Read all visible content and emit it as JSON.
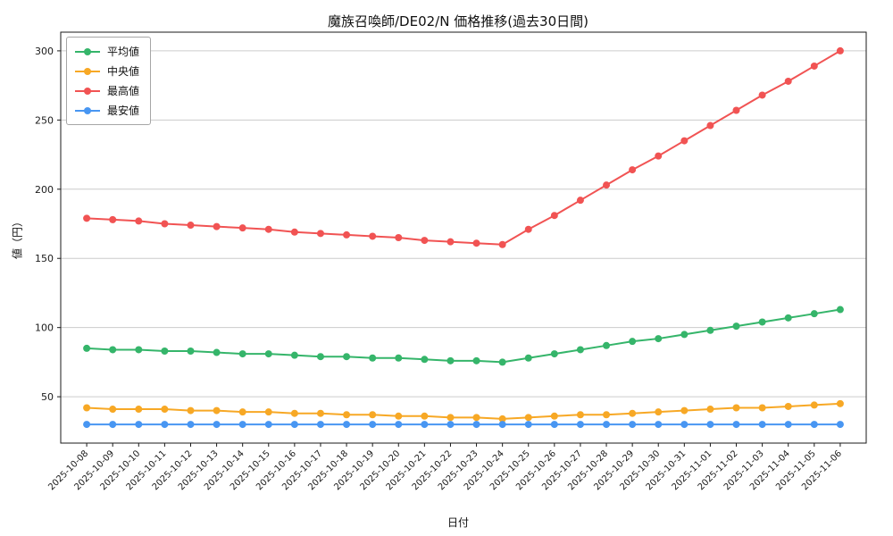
{
  "chart_data": {
    "type": "line",
    "title": "魔族召喚師/DE02/N 価格推移(過去30日間)",
    "xlabel": "日付",
    "ylabel": "値（円）",
    "ylim": [
      16.5,
      313.5
    ],
    "yticks": [
      50,
      100,
      150,
      200,
      250,
      300
    ],
    "grid": "horizontal",
    "legend_position": "upper-left",
    "axis_color": "#1a1a1a",
    "grid_color": "#cccccc",
    "categories": [
      "2025-10-08",
      "2025-10-09",
      "2025-10-10",
      "2025-10-11",
      "2025-10-12",
      "2025-10-13",
      "2025-10-14",
      "2025-10-15",
      "2025-10-16",
      "2025-10-17",
      "2025-10-18",
      "2025-10-19",
      "2025-10-20",
      "2025-10-21",
      "2025-10-22",
      "2025-10-23",
      "2025-10-24",
      "2025-10-25",
      "2025-10-26",
      "2025-10-27",
      "2025-10-28",
      "2025-10-29",
      "2025-10-30",
      "2025-10-31",
      "2025-11-01",
      "2025-11-02",
      "2025-11-03",
      "2025-11-04",
      "2025-11-05",
      "2025-11-06"
    ],
    "series": [
      {
        "name": "平均値",
        "color": "#35b56a",
        "values": [
          85,
          84,
          84,
          83,
          83,
          82,
          81,
          81,
          80,
          79,
          79,
          78,
          78,
          77,
          76,
          76,
          75,
          78,
          81,
          84,
          87,
          90,
          92,
          95,
          98,
          101,
          104,
          107,
          110,
          113
        ]
      },
      {
        "name": "中央値",
        "color": "#f7a825",
        "values": [
          42,
          41,
          41,
          41,
          40,
          40,
          39,
          39,
          38,
          38,
          37,
          37,
          36,
          36,
          35,
          35,
          34,
          35,
          36,
          37,
          37,
          38,
          39,
          40,
          41,
          42,
          42,
          43,
          44,
          45
        ]
      },
      {
        "name": "最高値",
        "color": "#f15353",
        "values": [
          179,
          178,
          177,
          175,
          174,
          173,
          172,
          171,
          169,
          168,
          167,
          166,
          165,
          163,
          162,
          161,
          160,
          171,
          181,
          192,
          203,
          214,
          224,
          235,
          246,
          257,
          268,
          278,
          289,
          300
        ]
      },
      {
        "name": "最安値",
        "color": "#4896f2",
        "values": [
          30,
          30,
          30,
          30,
          30,
          30,
          30,
          30,
          30,
          30,
          30,
          30,
          30,
          30,
          30,
          30,
          30,
          30,
          30,
          30,
          30,
          30,
          30,
          30,
          30,
          30,
          30,
          30,
          30,
          30
        ]
      }
    ]
  }
}
